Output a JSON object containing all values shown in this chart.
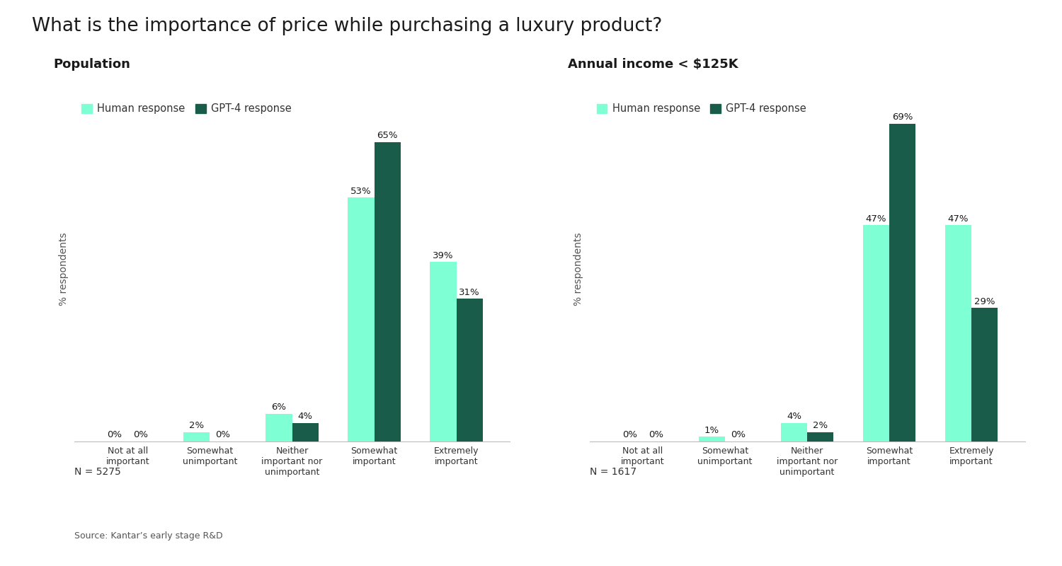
{
  "title": "What is the importance of price while purchasing a luxury product?",
  "title_fontsize": 19,
  "background_color": "#ffffff",
  "left_subtitle": "Population",
  "right_subtitle": "Annual income < $125K",
  "subtitle_fontsize": 13,
  "categories": [
    "Not at all\nimportant",
    "Somewhat\nunimportant",
    "Neither\nimportant nor\nunimportant",
    "Somewhat\nimportant",
    "Extremely\nimportant"
  ],
  "left_human": [
    0,
    2,
    6,
    53,
    39
  ],
  "left_gpt": [
    0,
    0,
    4,
    65,
    31
  ],
  "left_n": "N = 5275",
  "right_human": [
    0,
    1,
    4,
    47,
    47
  ],
  "right_gpt": [
    0,
    0,
    2,
    69,
    29
  ],
  "right_n": "N = 1617",
  "human_color": "#7FFFD4",
  "gpt_color": "#1a5c4a",
  "ylabel": "% respondents",
  "ylabel_fontsize": 10,
  "legend_human": "Human response",
  "legend_gpt": "GPT-4 response",
  "legend_fontsize": 10.5,
  "bar_width": 0.32,
  "ylim": [
    0,
    75
  ],
  "source_text": "Source: Kantar’s early stage R&D",
  "value_fontsize": 9.5,
  "tick_fontsize": 9,
  "n_fontsize": 10
}
